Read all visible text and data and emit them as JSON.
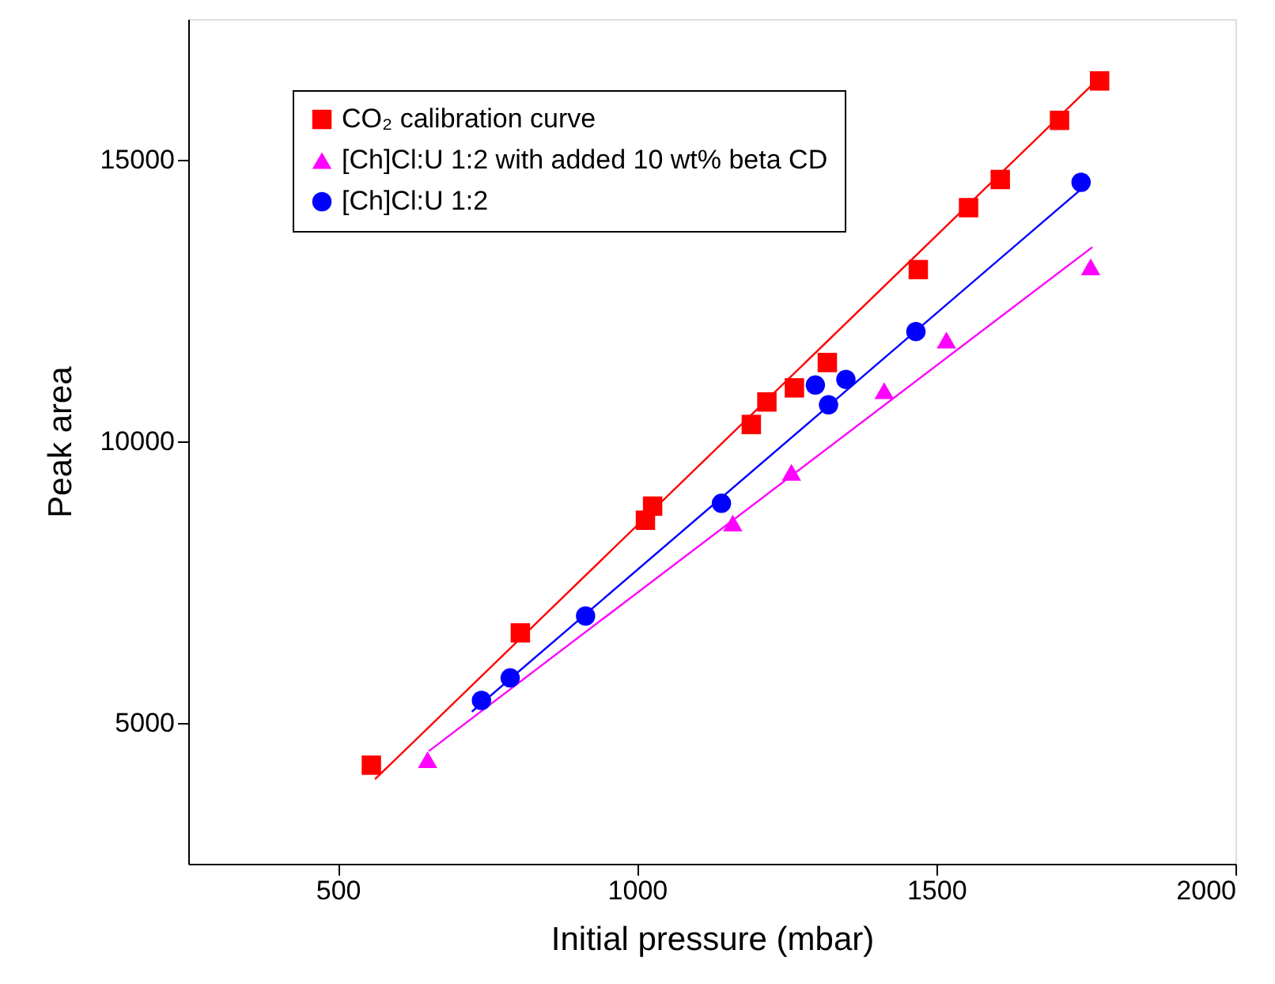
{
  "chart_data": {
    "type": "scatter",
    "xlabel": "Initial pressure (mbar)",
    "ylabel": "Peak area",
    "xlim": [
      250,
      2000
    ],
    "xticks": [
      500,
      1000,
      1500,
      2000
    ],
    "ylim": [
      2500,
      17500
    ],
    "yticks": [
      5000,
      10000,
      15000
    ],
    "grid": false,
    "legend": "top left",
    "series": [
      {
        "name": "CO₂ calibration curve",
        "color": "#ff0000",
        "marker": "square",
        "x": [
          556,
          805,
          1014,
          1026,
          1191,
          1217,
          1263,
          1318,
          1470,
          1554,
          1607,
          1706,
          1773
        ],
        "values": [
          4250,
          6600,
          8600,
          8850,
          10300,
          10700,
          10950,
          11400,
          13050,
          14150,
          14650,
          15700,
          16400
        ]
      },
      {
        "name": "[Ch]Cl:U 1:2 with added 10 wt% beta CD",
        "color": "#ff00ff",
        "marker": "triangle",
        "x": [
          650,
          1160,
          1258,
          1413,
          1517,
          1758
        ],
        "values": [
          4350,
          8550,
          9450,
          10900,
          11800,
          13100
        ]
      },
      {
        "name": "[Ch]Cl:U 1:2",
        "color": "#0000ff",
        "marker": "circle",
        "x": [
          740,
          788,
          914,
          1141,
          1298,
          1320,
          1349,
          1466,
          1742
        ],
        "values": [
          5400,
          5800,
          6900,
          8900,
          11000,
          10650,
          11100,
          11950,
          14600
        ]
      },
      {
        "type": "line",
        "color": "#ff0000",
        "x": [
          562,
          1777
        ],
        "values": [
          4000,
          16500
        ]
      },
      {
        "type": "line",
        "color": "#ff00ff",
        "x": [
          652,
          1761
        ],
        "values": [
          4500,
          13450
        ]
      },
      {
        "type": "line",
        "color": "#0000ff",
        "x": [
          724,
          1750
        ],
        "values": [
          5200,
          14550
        ]
      }
    ]
  }
}
